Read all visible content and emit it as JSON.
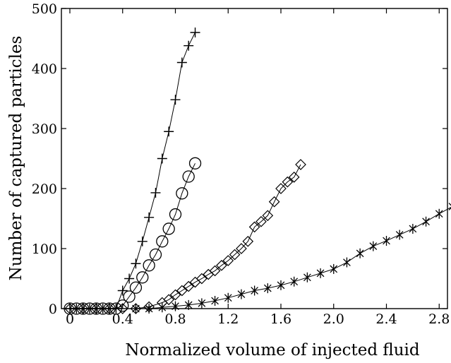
{
  "chart_data": {
    "type": "line",
    "title": "",
    "xlabel": "Normalized volume of injected fluid",
    "ylabel": "Number of captured particles",
    "xlim": [
      -0.05,
      3.0
    ],
    "ylim": [
      0,
      500
    ],
    "x_ticks": [
      0,
      0.4,
      0.8,
      1.2,
      1.6,
      2.0,
      2.4,
      2.8
    ],
    "x_tick_labels": [
      "0",
      "0.4",
      "0.8",
      "1.2",
      "1.6",
      "2.0",
      "2.4",
      "2.8"
    ],
    "y_ticks": [
      0,
      100,
      200,
      300,
      400,
      500
    ],
    "y_tick_labels": [
      "0",
      "100",
      "200",
      "300",
      "400",
      "500"
    ],
    "grid": false,
    "legend": "none",
    "line_color": "#000000",
    "series": [
      {
        "marker": "plus",
        "x": [
          0,
          0.05,
          0.1,
          0.15,
          0.2,
          0.25,
          0.3,
          0.35,
          0.4,
          0.45,
          0.5,
          0.55,
          0.6,
          0.65,
          0.7,
          0.75,
          0.8,
          0.85,
          0.9,
          0.95
        ],
        "y": [
          0,
          0,
          0,
          0,
          0,
          0,
          0,
          0,
          30,
          50,
          75,
          112,
          152,
          193,
          250,
          295,
          348,
          410,
          438,
          460
        ]
      },
      {
        "marker": "circle",
        "x": [
          0,
          0.05,
          0.1,
          0.15,
          0.2,
          0.25,
          0.3,
          0.35,
          0.4,
          0.45,
          0.5,
          0.55,
          0.6,
          0.65,
          0.7,
          0.75,
          0.8,
          0.85,
          0.9,
          0.95
        ],
        "y": [
          0,
          0,
          0,
          0,
          0,
          0,
          0,
          0,
          5,
          20,
          35,
          52,
          72,
          90,
          112,
          133,
          157,
          192,
          220,
          242
        ]
      },
      {
        "marker": "diamond",
        "x": [
          0,
          0.1,
          0.2,
          0.3,
          0.4,
          0.5,
          0.6,
          0.7,
          0.75,
          0.8,
          0.85,
          0.9,
          0.95,
          1.0,
          1.05,
          1.1,
          1.15,
          1.2,
          1.25,
          1.3,
          1.35,
          1.4,
          1.45,
          1.5,
          1.55,
          1.6,
          1.65,
          1.7,
          1.75
        ],
        "y": [
          0,
          0,
          0,
          0,
          0,
          0,
          3,
          10,
          15,
          23,
          30,
          37,
          44,
          50,
          57,
          63,
          72,
          80,
          90,
          100,
          112,
          136,
          145,
          155,
          178,
          200,
          211,
          219,
          240
        ]
      },
      {
        "marker": "asterisk",
        "x": [
          0.5,
          0.6,
          0.7,
          0.8,
          0.9,
          1.0,
          1.1,
          1.2,
          1.3,
          1.4,
          1.5,
          1.6,
          1.7,
          1.8,
          1.9,
          2.0,
          2.1,
          2.2,
          2.3,
          2.4,
          2.5,
          2.6,
          2.7,
          2.8,
          2.9
        ],
        "y": [
          0,
          0,
          2,
          4,
          6,
          9,
          13,
          18,
          24,
          30,
          34,
          39,
          45,
          52,
          59,
          66,
          77,
          92,
          104,
          113,
          123,
          133,
          145,
          158,
          170
        ]
      }
    ]
  }
}
